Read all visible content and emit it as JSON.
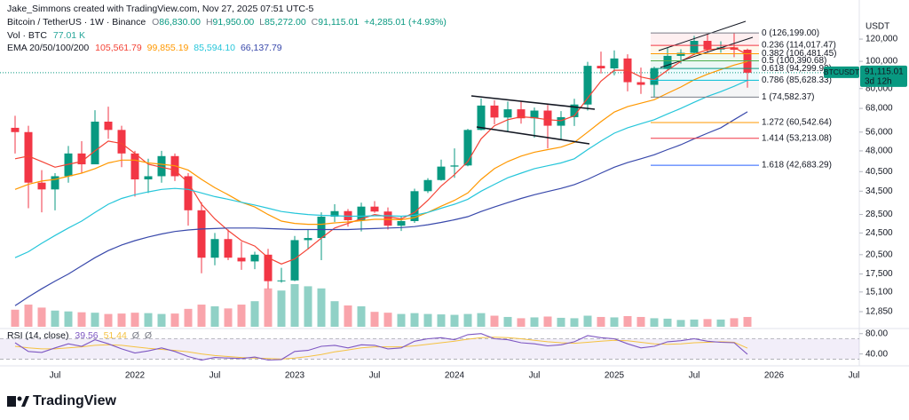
{
  "header": {
    "credit": "Jake_Simmons created with TradingView.com, Nov 27, 2025 07:51 UTC-5",
    "symbol": "Bitcoin / TetherUS · 1W · Binance",
    "ohlc": [
      {
        "key": "O",
        "value": "86,830.00"
      },
      {
        "key": "H",
        "value": "91,950.00"
      },
      {
        "key": "L",
        "value": "85,272.00"
      },
      {
        "key": "C",
        "value": "91,115.01"
      }
    ],
    "change": "+4,285.01 (+4.93%)",
    "volume": {
      "title": "Vol · BTC",
      "value": "77.01 K"
    },
    "ema": {
      "title": "EMA 20/50/100/200",
      "values": [
        "105,561.79",
        "99,855.19",
        "85,594.10",
        "66,137.79"
      ]
    },
    "rsi": {
      "title": "RSI (14, close)",
      "values": [
        "39.56",
        "51.44",
        "Ø",
        "Ø"
      ]
    },
    "currency": "USDT",
    "logo": "TradingView"
  },
  "chart_data": {
    "type": "candlestick",
    "log_scale": true,
    "categories": [
      null,
      null,
      null,
      "Jul",
      null,
      null,
      null,
      null,
      null,
      "2022",
      null,
      null,
      null,
      null,
      null,
      "Jul",
      null,
      null,
      null,
      null,
      null,
      "2023",
      null,
      null,
      null,
      null,
      null,
      "Jul",
      null,
      null,
      null,
      null,
      null,
      "2024",
      null,
      null,
      null,
      null,
      null,
      "Jul",
      null,
      null,
      null,
      null,
      null,
      "2025",
      null,
      null,
      null,
      null,
      null,
      "Jul",
      null,
      null,
      null,
      null,
      null,
      "2026",
      null,
      null,
      null,
      null,
      null,
      "Jul"
    ],
    "open": [
      58000,
      56000,
      37000,
      35000,
      39000,
      47000,
      43000,
      61000,
      57000,
      47000,
      38000,
      39000,
      46000,
      39000,
      29500,
      20000,
      23300,
      20000,
      19400,
      20500,
      16500,
      16600,
      23100,
      23500,
      28000,
      29300,
      27200,
      30400,
      29200,
      26000,
      27000,
      34500,
      37800,
      42200,
      42600,
      57000,
      69600,
      63100,
      67500,
      62700,
      66800,
      59000,
      63300,
      70200,
      96400,
      94400,
      102400,
      84300,
      82500,
      94200,
      104600,
      107200,
      118300,
      110200,
      112100,
      110000,
      null,
      null,
      null,
      null,
      null,
      null,
      null,
      null
    ],
    "high": [
      64000,
      59000,
      41000,
      40000,
      50000,
      52000,
      67000,
      69000,
      59000,
      48000,
      45000,
      48000,
      47000,
      40000,
      31500,
      24500,
      25200,
      22800,
      21000,
      21500,
      18400,
      23900,
      25200,
      29000,
      31000,
      29800,
      31400,
      31800,
      30200,
      28000,
      35200,
      38400,
      44700,
      49000,
      57500,
      73800,
      72700,
      71900,
      71900,
      68500,
      70000,
      66500,
      73600,
      99600,
      108300,
      109400,
      106000,
      95000,
      95700,
      111900,
      110400,
      123200,
      124500,
      117900,
      126200,
      111000,
      null,
      null,
      null,
      null,
      null,
      null,
      null,
      null
    ],
    "low": [
      47000,
      30000,
      29000,
      29500,
      37000,
      40000,
      43000,
      53000,
      42000,
      33000,
      34000,
      37000,
      37500,
      26000,
      17600,
      18800,
      19600,
      18100,
      18200,
      15500,
      16300,
      16500,
      21400,
      19600,
      26800,
      25800,
      24800,
      28900,
      25200,
      24900,
      26600,
      34000,
      37600,
      38500,
      42300,
      56800,
      59700,
      56500,
      60000,
      53500,
      49000,
      52500,
      58900,
      66800,
      90500,
      89200,
      78200,
      76600,
      74400,
      93400,
      98200,
      105300,
      107300,
      107300,
      103500,
      80600,
      null,
      null,
      null,
      null,
      null,
      null,
      null,
      null
    ],
    "close": [
      56000,
      37000,
      35000,
      39000,
      47000,
      43000,
      61000,
      57000,
      47000,
      38000,
      39000,
      46000,
      39000,
      29500,
      20000,
      23300,
      20000,
      19400,
      20500,
      16500,
      16600,
      23100,
      23500,
      28000,
      29300,
      27200,
      30400,
      29200,
      26000,
      27000,
      34500,
      37800,
      42200,
      42600,
      57000,
      69600,
      63100,
      67500,
      62700,
      66800,
      59000,
      63300,
      70200,
      96400,
      94400,
      102400,
      84300,
      82500,
      94200,
      104600,
      107200,
      118300,
      110200,
      112100,
      110000,
      91115.01,
      null,
      null,
      null,
      null,
      null,
      null,
      null,
      null
    ],
    "colors": {
      "up": "#089981",
      "down": "#f23645"
    },
    "ylim": [
      11190,
      156000
    ],
    "yticks": [
      {
        "value": 120000,
        "label": "120,000"
      },
      {
        "value": 100000,
        "label": "100,000"
      },
      {
        "value": 80000,
        "label": "80,000"
      },
      {
        "value": 68000,
        "label": "68,000"
      },
      {
        "value": 56000,
        "label": "56,000"
      },
      {
        "value": 48000,
        "label": "48,000"
      },
      {
        "value": 40500,
        "label": "40,500"
      },
      {
        "value": 34500,
        "label": "34,500"
      },
      {
        "value": 28500,
        "label": "28,500"
      },
      {
        "value": 24500,
        "label": "24,500"
      },
      {
        "value": 20500,
        "label": "20,500"
      },
      {
        "value": 17500,
        "label": "17,500"
      },
      {
        "value": 15100,
        "label": "15,100"
      },
      {
        "value": 12850,
        "label": "12,850"
      }
    ],
    "ema": [
      {
        "color": "#f44336",
        "values": [
          45000,
          46000,
          44000,
          42000,
          43000,
          44000,
          48000,
          52000,
          51000,
          47000,
          43000,
          42000,
          41000,
          37000,
          31000,
          27500,
          25000,
          23000,
          22000,
          20000,
          19000,
          19800,
          21500,
          23500,
          25500,
          26500,
          27500,
          28500,
          28000,
          27500,
          29000,
          32000,
          36000,
          39500,
          44000,
          53000,
          59000,
          62000,
          63500,
          63000,
          62000,
          61500,
          64000,
          74000,
          85000,
          93000,
          93000,
          88000,
          86000,
          93000,
          100000,
          106000,
          110000,
          111000,
          112000,
          105561.79,
          null,
          null,
          null,
          null,
          null,
          null,
          null,
          null
        ]
      },
      {
        "color": "#ff9800",
        "values": [
          35000,
          36500,
          37500,
          38000,
          39000,
          40000,
          41500,
          43500,
          44500,
          44500,
          43500,
          43000,
          42500,
          41000,
          38000,
          35500,
          33500,
          31500,
          30300,
          28500,
          27000,
          26500,
          26300,
          26300,
          26600,
          26800,
          27100,
          27400,
          27400,
          27300,
          27800,
          29000,
          30500,
          32000,
          34000,
          38000,
          41500,
          44000,
          46000,
          47500,
          48500,
          49500,
          51500,
          56000,
          61000,
          66000,
          69000,
          71000,
          73000,
          77000,
          81000,
          86000,
          90000,
          93500,
          97000,
          99855.19,
          null,
          null,
          null,
          null,
          null,
          null,
          null,
          null
        ]
      },
      {
        "color": "#26c6da",
        "values": [
          20000,
          21000,
          22500,
          24000,
          25500,
          27000,
          29000,
          31000,
          32500,
          33500,
          34300,
          35000,
          35300,
          35000,
          34000,
          33000,
          32300,
          31500,
          30800,
          30000,
          29200,
          28800,
          28500,
          28300,
          28200,
          28100,
          28100,
          28200,
          28200,
          28100,
          28300,
          29000,
          30000,
          31000,
          32300,
          34500,
          36500,
          38500,
          40000,
          41500,
          42500,
          43500,
          45000,
          48500,
          52000,
          55500,
          58000,
          60000,
          62000,
          65000,
          68000,
          71500,
          75000,
          78000,
          81500,
          85594.1,
          null,
          null,
          null,
          null,
          null,
          null,
          null,
          null
        ]
      },
      {
        "color": "#3949ab",
        "values": [
          13500,
          14500,
          15500,
          16500,
          17500,
          18700,
          20000,
          21200,
          22200,
          23000,
          23700,
          24300,
          24800,
          25100,
          25300,
          25400,
          25500,
          25500,
          25500,
          25400,
          25300,
          25200,
          25200,
          25200,
          25200,
          25200,
          25300,
          25400,
          25500,
          25600,
          25800,
          26200,
          26700,
          27300,
          28000,
          29200,
          30300,
          31400,
          32500,
          33500,
          34400,
          35300,
          36400,
          38000,
          40000,
          42000,
          43600,
          45000,
          46500,
          48500,
          50500,
          53000,
          55500,
          58000,
          62000,
          66137.79,
          null,
          null,
          null,
          null,
          null,
          null,
          null,
          null
        ]
      }
    ],
    "volume": {
      "values": [
        400,
        520,
        450,
        380,
        360,
        340,
        330,
        300,
        310,
        330,
        320,
        300,
        310,
        420,
        520,
        480,
        430,
        520,
        600,
        900,
        850,
        1000,
        950,
        900,
        600,
        500,
        480,
        350,
        330,
        300,
        320,
        300,
        290,
        280,
        300,
        320,
        260,
        230,
        200,
        220,
        240,
        210,
        200,
        260,
        230,
        220,
        250,
        230,
        200,
        190,
        160,
        170,
        180,
        170,
        200,
        230,
        null,
        null,
        null,
        null,
        null,
        null,
        null,
        null
      ]
    },
    "last_price": {
      "symbol": "BTCUSDT",
      "value": 91115.01,
      "label": "91,115.01",
      "countdown": "3d 12h",
      "color": "#089981"
    },
    "fib_levels": [
      {
        "value": 126199.0,
        "label": "0 (126,199.00)",
        "color": "#787b86"
      },
      {
        "value": 114017.47,
        "label": "0.236 (114,017.47)",
        "color": "#f23645"
      },
      {
        "value": 106481.45,
        "label": "0.382 (106,481.45)",
        "color": "#ff9800"
      },
      {
        "value": 100390.68,
        "label": "0.5 (100,390.68)",
        "color": "#4caf50"
      },
      {
        "value": 94299.92,
        "label": "0.618 (94,299.92)",
        "color": "#089981"
      },
      {
        "value": 85628.33,
        "label": "0.786 (85,628.33)",
        "color": "#00bcd4"
      },
      {
        "value": 74582.37,
        "label": "1 (74,582.37)",
        "color": "#787b86"
      },
      {
        "value": 60542.64,
        "label": "1.272 (60,542.64)",
        "color": "#ff9800"
      },
      {
        "value": 53213.08,
        "label": "1.414 (53,213.08)",
        "color": "#f23645"
      },
      {
        "value": 42683.29,
        "label": "1.618 (42,683.29)",
        "color": "#2962ff"
      }
    ],
    "rsi": {
      "color": "#7e57c2",
      "ma_color": "#f5c242",
      "band": [
        30,
        70
      ],
      "values": [
        62,
        45,
        43,
        52,
        60,
        55,
        68,
        60,
        50,
        42,
        46,
        52,
        45,
        35,
        28,
        33,
        32,
        31,
        34,
        28,
        29,
        45,
        47,
        55,
        57,
        52,
        58,
        57,
        50,
        52,
        65,
        70,
        72,
        68,
        78,
        80,
        70,
        68,
        62,
        60,
        56,
        58,
        64,
        76,
        72,
        70,
        60,
        52,
        55,
        64,
        66,
        70,
        65,
        63,
        62,
        39.56,
        null,
        null,
        null,
        null,
        null,
        null,
        null,
        null
      ],
      "ma_values": [
        55,
        52,
        50,
        50,
        52,
        54,
        57,
        58,
        57,
        54,
        51,
        49,
        47,
        44,
        40,
        37,
        35,
        33,
        32,
        31,
        30,
        32,
        35,
        39,
        44,
        48,
        52,
        54,
        54,
        54,
        56,
        59,
        62,
        65,
        69,
        72,
        73,
        72,
        70,
        67,
        64,
        62,
        61,
        63,
        65,
        67,
        66,
        63,
        60,
        59,
        60,
        62,
        63,
        64,
        63,
        51.44,
        null,
        null,
        null,
        null,
        null,
        null,
        null,
        null
      ],
      "ylim": [
        16.67,
        90
      ],
      "yticks": [
        {
          "value": 80,
          "label": "80.00"
        },
        {
          "value": 40,
          "label": "40.00"
        }
      ]
    }
  }
}
